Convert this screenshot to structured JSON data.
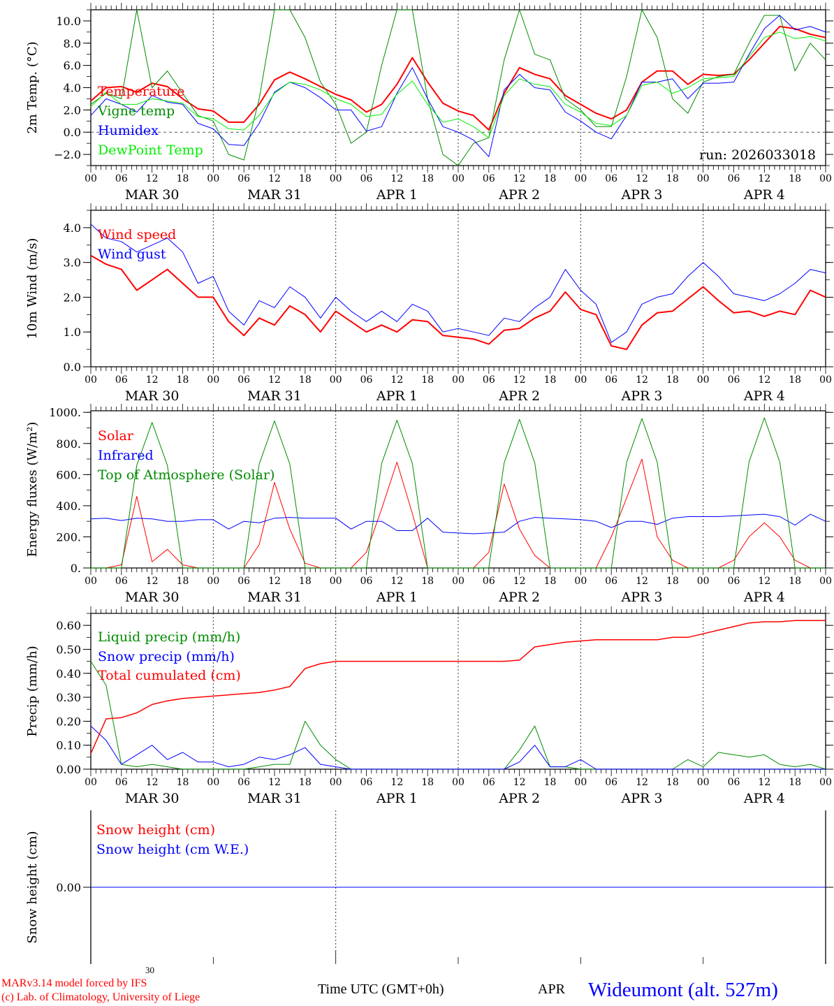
{
  "colors": {
    "red": "#ff0000",
    "green": "#008c00",
    "blue": "#0000ff",
    "lightgreen": "#00ee00"
  },
  "time": {
    "step_hours": 3,
    "hour_labels": [
      "00",
      "06",
      "12",
      "18"
    ],
    "last_hour_label": "00",
    "day_labels": [
      "MAR 30",
      "MAR 31",
      "APR  1",
      "APR  2",
      "APR  3",
      "APR  4"
    ],
    "xlabel": "Time UTC (GMT+0h)"
  },
  "footer": {
    "credit1": "MARv3.14 model forced by IFS",
    "credit2": "(c) Lab. of Climatology, University of Liege",
    "axis_day": "30",
    "axis_month": "APR",
    "station": "Wideumont (alt. 527m)"
  },
  "chart_data": [
    {
      "type": "line",
      "ylabel": "2m Temp. (°C)",
      "ylim": [
        -3,
        11
      ],
      "yticks": [
        -2,
        0,
        2,
        4,
        6,
        8,
        10
      ],
      "ytick_labels": [
        "−2.0",
        "0.0",
        "2.0",
        "4.0",
        "6.0",
        "8.0",
        "10.0"
      ],
      "zero_line": true,
      "annotation": "run: 2026033018",
      "series": [
        {
          "name": "Temperature",
          "color": "#ff0000",
          "width": 2,
          "values": [
            2.8,
            4.0,
            4.1,
            3.6,
            4.4,
            4.1,
            3.0,
            2.1,
            1.9,
            0.9,
            0.9,
            2.5,
            4.7,
            5.4,
            4.8,
            4.1,
            3.4,
            2.9,
            1.8,
            2.5,
            4.3,
            6.7,
            4.5,
            2.6,
            1.9,
            1.5,
            0.2,
            3.5,
            5.8,
            5.2,
            4.8,
            3.3,
            2.5,
            1.7,
            1.2,
            2.0,
            4.5,
            5.5,
            5.5,
            4.3,
            5.2,
            5.1,
            5.2,
            6.5,
            8.0,
            9.5,
            9.3,
            8.8,
            8.5
          ]
        },
        {
          "name": "Vigne temp",
          "color": "#008c00",
          "width": 1,
          "values": [
            2.5,
            3.5,
            3.0,
            11,
            4.0,
            5.5,
            3.5,
            1.5,
            1.0,
            -2.0,
            -2.5,
            3.0,
            11,
            11,
            8.5,
            4.5,
            2.5,
            -1.0,
            0.0,
            6.0,
            11,
            11,
            3.0,
            -2.0,
            -3.0,
            -1.0,
            -0.5,
            6.5,
            11,
            7.0,
            6.5,
            3.0,
            2.0,
            0.5,
            0.5,
            5.0,
            11,
            8.5,
            3.0,
            1.7,
            4.5,
            5.0,
            5.2,
            8.0,
            10.5,
            10.5,
            5.5,
            8.0,
            6.5
          ]
        },
        {
          "name": "Humidex",
          "color": "#0000ff",
          "width": 1,
          "values": [
            1.5,
            3.0,
            2.5,
            1.8,
            3.3,
            2.7,
            2.5,
            0.8,
            0.3,
            -1.1,
            -1.2,
            0.8,
            3.6,
            4.5,
            4.0,
            3.1,
            2.0,
            2.0,
            0.1,
            0.5,
            3.5,
            5.8,
            3.0,
            0.5,
            0.0,
            -0.7,
            -2.2,
            3.8,
            5.2,
            4.0,
            3.8,
            1.8,
            1.0,
            0.0,
            -0.6,
            1.5,
            4.5,
            4.5,
            4.8,
            3.0,
            4.4,
            4.4,
            4.5,
            7.0,
            9.3,
            10.5,
            9.2,
            9.5,
            9.0
          ]
        },
        {
          "name": "DewPoint Temp",
          "color": "#00ee00",
          "width": 1,
          "values": [
            2.3,
            3.6,
            2.5,
            2.5,
            3.0,
            2.8,
            2.6,
            1.4,
            1.2,
            0.3,
            0.2,
            1.5,
            3.5,
            4.5,
            4.3,
            3.8,
            3.0,
            2.5,
            1.4,
            1.6,
            3.4,
            4.6,
            2.5,
            0.9,
            1.2,
            0.5,
            -0.5,
            3.3,
            4.8,
            4.3,
            4.1,
            2.5,
            1.8,
            0.8,
            0.6,
            1.5,
            4.2,
            4.5,
            3.5,
            4.0,
            4.8,
            4.9,
            5.0,
            6.8,
            8.5,
            9.0,
            8.4,
            8.6,
            8.2
          ]
        }
      ]
    },
    {
      "type": "line",
      "ylabel": "10m Wind (m/s)",
      "ylim": [
        0,
        4.5
      ],
      "yticks": [
        0,
        1,
        2,
        3,
        4
      ],
      "ytick_labels": [
        "0.0",
        "1.0",
        "2.0",
        "3.0",
        "4.0"
      ],
      "series": [
        {
          "name": "Wind speed",
          "color": "#ff0000",
          "width": 2,
          "values": [
            3.2,
            2.95,
            2.8,
            2.2,
            2.5,
            2.8,
            2.4,
            2.0,
            2.0,
            1.3,
            0.9,
            1.4,
            1.2,
            1.75,
            1.5,
            1.0,
            1.6,
            1.3,
            1.0,
            1.2,
            1.0,
            1.35,
            1.3,
            0.9,
            0.85,
            0.8,
            0.65,
            1.05,
            1.1,
            1.4,
            1.6,
            2.15,
            1.65,
            1.5,
            0.6,
            0.5,
            1.2,
            1.55,
            1.6,
            1.95,
            2.3,
            1.9,
            1.55,
            1.6,
            1.45,
            1.6,
            1.5,
            2.2,
            2.0
          ]
        },
        {
          "name": "Wind gust",
          "color": "#0000ff",
          "width": 1,
          "values": [
            4.1,
            3.7,
            3.6,
            3.3,
            3.5,
            3.7,
            3.3,
            2.4,
            2.6,
            1.6,
            1.2,
            1.9,
            1.7,
            2.3,
            2.0,
            1.4,
            2.0,
            1.6,
            1.3,
            1.6,
            1.3,
            1.8,
            1.6,
            1.0,
            1.1,
            1.0,
            0.9,
            1.4,
            1.3,
            1.7,
            2.0,
            2.8,
            2.2,
            1.8,
            0.7,
            1.0,
            1.8,
            2.0,
            2.1,
            2.6,
            3.0,
            2.6,
            2.1,
            2.0,
            1.9,
            2.1,
            2.4,
            2.8,
            2.7
          ]
        }
      ]
    },
    {
      "type": "line",
      "ylabel": "Energy fluxes (W/m²)",
      "ylim": [
        0,
        1010
      ],
      "yticks": [
        0,
        200,
        400,
        600,
        800,
        1000
      ],
      "ytick_labels": [
        "0.",
        "200.",
        "400.",
        "600.",
        "800.",
        "1000."
      ],
      "series": [
        {
          "name": "Solar",
          "color": "#ff0000",
          "width": 1,
          "values": [
            0,
            0,
            20,
            460,
            40,
            120,
            20,
            0,
            0,
            0,
            0,
            150,
            550,
            250,
            30,
            0,
            0,
            0,
            100,
            380,
            680,
            350,
            0,
            0,
            0,
            0,
            100,
            540,
            250,
            80,
            0,
            0,
            0,
            0,
            200,
            450,
            700,
            200,
            50,
            0,
            0,
            0,
            50,
            200,
            290,
            200,
            50,
            0,
            0
          ]
        },
        {
          "name": "Infrared",
          "color": "#0000ff",
          "width": 1,
          "values": [
            315,
            320,
            305,
            320,
            315,
            300,
            300,
            310,
            310,
            250,
            300,
            290,
            320,
            325,
            320,
            320,
            320,
            250,
            300,
            300,
            240,
            240,
            320,
            230,
            225,
            220,
            225,
            230,
            300,
            325,
            320,
            315,
            310,
            300,
            260,
            300,
            300,
            280,
            320,
            330,
            330,
            330,
            335,
            340,
            345,
            330,
            275,
            345,
            300
          ]
        },
        {
          "name": "Top of Atmosphere (Solar)",
          "color": "#008c00",
          "width": 1,
          "values": [
            0,
            0,
            0,
            660,
            935,
            660,
            0,
            0,
            0,
            0,
            0,
            668,
            945,
            668,
            0,
            0,
            0,
            0,
            0,
            672,
            950,
            672,
            0,
            0,
            0,
            0,
            0,
            675,
            955,
            675,
            0,
            0,
            0,
            0,
            0,
            679,
            960,
            679,
            0,
            0,
            0,
            0,
            0,
            682,
            965,
            682,
            0,
            0,
            0
          ]
        }
      ]
    },
    {
      "type": "line",
      "ylabel": "Precip (mm/h)",
      "ylim": [
        0,
        0.65
      ],
      "yticks": [
        0,
        0.1,
        0.2,
        0.3,
        0.4,
        0.5,
        0.6
      ],
      "ytick_labels": [
        "0.00",
        "0.10",
        "0.20",
        "0.30",
        "0.40",
        "0.50",
        "0.60"
      ],
      "series": [
        {
          "name": "Liquid precip (mm/h)",
          "color": "#008c00",
          "width": 1,
          "values": [
            0.45,
            0.35,
            0.02,
            0.01,
            0.02,
            0.01,
            0,
            0,
            0,
            0,
            0,
            0.01,
            0.02,
            0.02,
            0.2,
            0.1,
            0.04,
            0,
            0,
            0,
            0,
            0,
            0,
            0,
            0,
            0,
            0,
            0,
            0.08,
            0.18,
            0.01,
            0.01,
            0,
            0,
            0,
            0,
            0,
            0,
            0,
            0.04,
            0.01,
            0.07,
            0.06,
            0.05,
            0.06,
            0.02,
            0.01,
            0.02,
            0
          ]
        },
        {
          "name": "Snow precip (mm/h)",
          "color": "#0000ff",
          "width": 1,
          "values": [
            0.18,
            0.12,
            0.02,
            0.06,
            0.1,
            0.04,
            0.07,
            0.03,
            0.03,
            0.01,
            0.02,
            0.05,
            0.04,
            0.06,
            0.09,
            0.02,
            0.01,
            0,
            0,
            0,
            0,
            0,
            0,
            0,
            0,
            0,
            0,
            0,
            0.03,
            0.1,
            0.01,
            0.01,
            0.04,
            0,
            0,
            0,
            0,
            0,
            0,
            0,
            0,
            0,
            0,
            0,
            0,
            0,
            0,
            0,
            0
          ]
        },
        {
          "name": "Total cumulated (cm)",
          "color": "#ff0000",
          "width": 1.5,
          "values": [
            0.065,
            0.21,
            0.215,
            0.235,
            0.27,
            0.285,
            0.295,
            0.3,
            0.305,
            0.31,
            0.315,
            0.32,
            0.33,
            0.345,
            0.42,
            0.44,
            0.45,
            0.45,
            0.45,
            0.45,
            0.45,
            0.45,
            0.45,
            0.45,
            0.45,
            0.45,
            0.45,
            0.45,
            0.455,
            0.51,
            0.52,
            0.53,
            0.535,
            0.54,
            0.54,
            0.54,
            0.54,
            0.54,
            0.55,
            0.55,
            0.565,
            0.58,
            0.595,
            0.61,
            0.615,
            0.615,
            0.62,
            0.62,
            0.62
          ]
        }
      ]
    },
    {
      "type": "line",
      "ylabel": "Snow height (cm)",
      "ylim": [
        -1,
        1
      ],
      "yticks": [
        0
      ],
      "ytick_labels": [
        "0.00"
      ],
      "series": [
        {
          "name": "Snow height (cm)",
          "color": "#ff0000",
          "width": 1,
          "values": [
            0,
            0,
            0,
            0,
            0,
            0,
            0,
            0,
            0,
            0,
            0,
            0,
            0,
            0,
            0,
            0,
            0,
            0,
            0,
            0,
            0,
            0,
            0,
            0,
            0,
            0,
            0,
            0,
            0,
            0,
            0,
            0,
            0,
            0,
            0,
            0,
            0,
            0,
            0,
            0,
            0,
            0,
            0,
            0,
            0,
            0,
            0,
            0,
            0
          ]
        },
        {
          "name": "Snow height (cm W.E.)",
          "color": "#0000ff",
          "width": 1,
          "values": [
            0,
            0,
            0,
            0,
            0,
            0,
            0,
            0,
            0,
            0,
            0,
            0,
            0,
            0,
            0,
            0,
            0,
            0,
            0,
            0,
            0,
            0,
            0,
            0,
            0,
            0,
            0,
            0,
            0,
            0,
            0,
            0,
            0,
            0,
            0,
            0,
            0,
            0,
            0,
            0,
            0,
            0,
            0,
            0,
            0,
            0,
            0,
            0,
            0
          ]
        }
      ]
    }
  ]
}
